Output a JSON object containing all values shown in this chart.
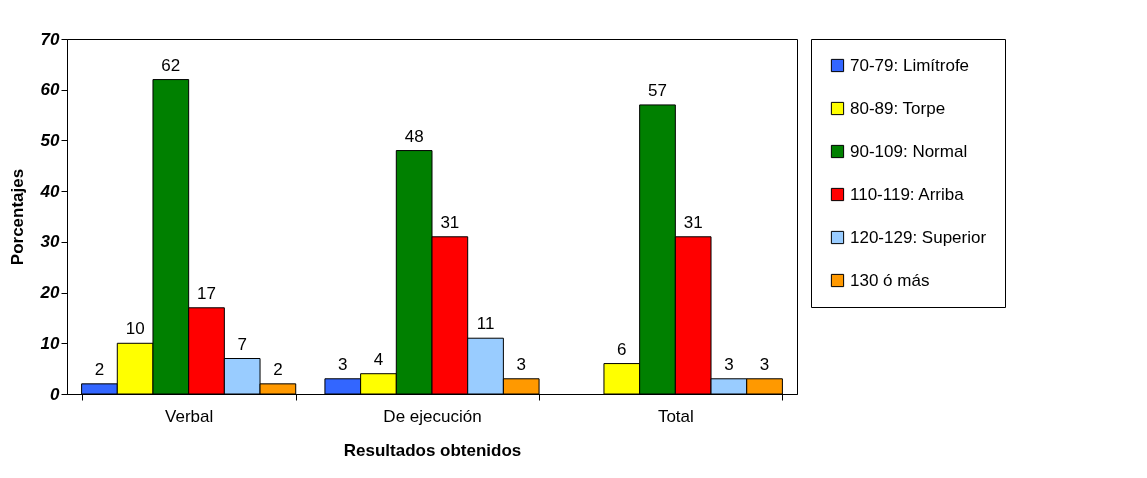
{
  "chart_data": {
    "type": "bar",
    "xlabel": "Resultados obtenidos",
    "ylabel": "Porcentajes",
    "categories": [
      "Verbal",
      "De ejecución",
      "Total"
    ],
    "series": [
      {
        "name": "70-79: Limítrofe",
        "color": "#3366ff",
        "values": [
          2,
          3,
          null
        ]
      },
      {
        "name": "80-89: Torpe",
        "color": "#ffff00",
        "values": [
          10,
          4,
          6
        ]
      },
      {
        "name": "90-109: Normal",
        "color": "#008000",
        "values": [
          62,
          48,
          57
        ]
      },
      {
        "name": "110-119: Arriba",
        "color": "#ff0000",
        "values": [
          17,
          31,
          31
        ]
      },
      {
        "name": "120-129: Superior",
        "color": "#99ccff",
        "values": [
          7,
          11,
          3
        ]
      },
      {
        "name": "130 ó más",
        "color": "#ff9900",
        "values": [
          2,
          3,
          3
        ]
      }
    ],
    "ylim": [
      0,
      70
    ],
    "yticks": [
      0,
      10,
      20,
      30,
      40,
      50,
      60,
      70
    ],
    "data_labels": true,
    "legend": "right",
    "grid": false
  }
}
